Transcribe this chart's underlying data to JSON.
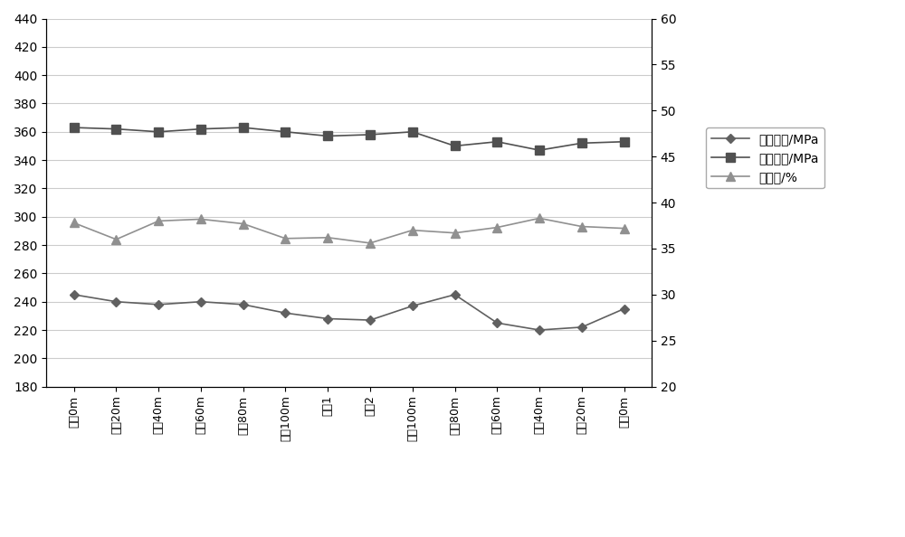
{
  "categories": [
    "头部0m",
    "头部20m",
    "头部40m",
    "头部60m",
    "头部80m",
    "头部100m",
    "中间1",
    "中间2",
    "尾部100m",
    "尾部80m",
    "尾部60m",
    "尾部40m",
    "尾部20m",
    "尾部0m"
  ],
  "yield_strength": [
    245,
    240,
    238,
    240,
    238,
    232,
    228,
    227,
    237,
    245,
    225,
    220,
    222,
    235
  ],
  "tensile_strength": [
    363,
    362,
    360,
    362,
    363,
    360,
    357,
    358,
    360,
    350,
    353,
    347,
    352,
    353
  ],
  "elongation": [
    37.8,
    36.0,
    38.0,
    38.2,
    37.7,
    36.1,
    36.2,
    35.6,
    37.0,
    36.7,
    37.3,
    38.3,
    37.4,
    37.2
  ],
  "left_ylim": [
    180,
    440
  ],
  "left_yticks": [
    180,
    200,
    220,
    240,
    260,
    280,
    300,
    320,
    340,
    360,
    380,
    400,
    420,
    440
  ],
  "right_ylim": [
    20,
    60
  ],
  "right_yticks": [
    20,
    25,
    30,
    35,
    40,
    45,
    50,
    55,
    60
  ],
  "legend_yield": "屈服强度/MPa",
  "legend_tensile": "抗拉强度/MPa",
  "legend_elongation": "延伸率/%",
  "yield_color": "#606060",
  "tensile_color": "#505050",
  "elongation_color": "#909090",
  "bg_color": "#ffffff",
  "grid_color": "#cccccc"
}
